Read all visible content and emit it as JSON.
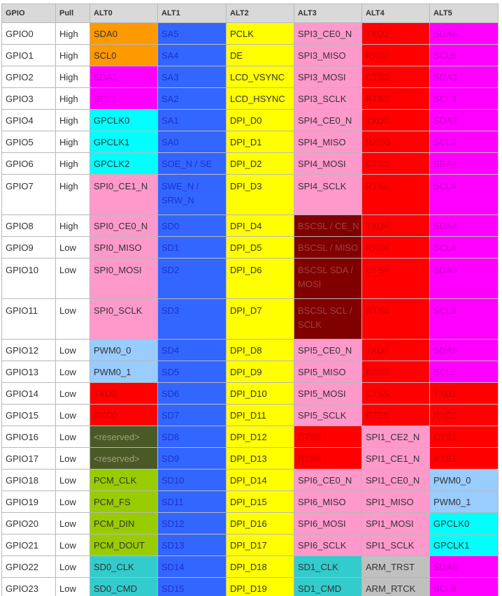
{
  "headers": [
    "GPIO",
    "Pull",
    "ALT0",
    "ALT1",
    "ALT2",
    "ALT3",
    "ALT4",
    "ALT5"
  ],
  "colors": {
    "orange": "#ff9900",
    "blue": "#3366ff",
    "yellow": "#ffff00",
    "pink": "#ff99cc",
    "red": "#ff0000",
    "magenta": "#ff00ff",
    "cyan": "#00ffff",
    "maroon": "#800000",
    "lightblue": "#99ccff",
    "olive": "#4a5a26",
    "green": "#99cc00",
    "teal": "#33cccc",
    "gray": "#c0c0c0",
    "white": "#ffffff"
  },
  "rows": [
    {
      "gpio": "GPIO0",
      "pull": "High",
      "cells": [
        [
          "SDA0",
          "orange"
        ],
        [
          "SA5",
          "blue"
        ],
        [
          "PCLK",
          "yellow"
        ],
        [
          "SPI3_CE0_N",
          "pink"
        ],
        [
          "TXD2",
          "red"
        ],
        [
          "SDA6",
          "magenta"
        ]
      ]
    },
    {
      "gpio": "GPIO1",
      "pull": "High",
      "cells": [
        [
          "SCL0",
          "orange"
        ],
        [
          "SA4",
          "blue"
        ],
        [
          "DE",
          "yellow"
        ],
        [
          "SPI3_MISO",
          "pink"
        ],
        [
          "RXD2",
          "red"
        ],
        [
          "SCL6",
          "magenta"
        ]
      ]
    },
    {
      "gpio": "GPIO2",
      "pull": "High",
      "cells": [
        [
          "SDA1",
          "magenta"
        ],
        [
          "SA3",
          "blue"
        ],
        [
          "LCD_VSYNC",
          "yellow"
        ],
        [
          "SPI3_MOSI",
          "pink"
        ],
        [
          "CTS2",
          "red"
        ],
        [
          "SDA3",
          "magenta"
        ]
      ]
    },
    {
      "gpio": "GPIO3",
      "pull": "High",
      "cells": [
        [
          "SCL1",
          "magenta"
        ],
        [
          "SA2",
          "blue"
        ],
        [
          "LCD_HSYNC",
          "yellow"
        ],
        [
          "SPI3_SCLK",
          "pink"
        ],
        [
          "RTS2",
          "red"
        ],
        [
          "SCL3",
          "magenta"
        ]
      ]
    },
    {
      "gpio": "GPIO4",
      "pull": "High",
      "cells": [
        [
          "GPCLK0",
          "cyan"
        ],
        [
          "SA1",
          "blue"
        ],
        [
          "DPI_D0",
          "yellow"
        ],
        [
          "SPI4_CE0_N",
          "pink"
        ],
        [
          "TXD3",
          "red"
        ],
        [
          "SDA3",
          "magenta"
        ]
      ]
    },
    {
      "gpio": "GPIO5",
      "pull": "High",
      "cells": [
        [
          "GPCLK1",
          "cyan"
        ],
        [
          "SA0",
          "blue"
        ],
        [
          "DPI_D1",
          "yellow"
        ],
        [
          "SPI4_MISO",
          "pink"
        ],
        [
          "RXD3",
          "red"
        ],
        [
          "SCL3",
          "magenta"
        ]
      ]
    },
    {
      "gpio": "GPIO6",
      "pull": "High",
      "cells": [
        [
          "GPCLK2",
          "cyan"
        ],
        [
          "SOE_N / SE",
          "blue"
        ],
        [
          "DPI_D2",
          "yellow"
        ],
        [
          "SPI4_MOSI",
          "pink"
        ],
        [
          "CTS3",
          "red"
        ],
        [
          "SDA4",
          "magenta"
        ]
      ]
    },
    {
      "gpio": "GPIO7",
      "pull": "High",
      "tall": true,
      "cells": [
        [
          "SPI0_CE1_N",
          "pink"
        ],
        [
          "SWE_N / SRW_N",
          "blue"
        ],
        [
          "DPI_D3",
          "yellow"
        ],
        [
          "SPI4_SCLK",
          "pink"
        ],
        [
          "RTS3",
          "red"
        ],
        [
          "SCL4",
          "magenta"
        ]
      ]
    },
    {
      "gpio": "GPIO8",
      "pull": "High",
      "cells": [
        [
          "SPI0_CE0_N",
          "pink"
        ],
        [
          "SD0",
          "blue"
        ],
        [
          "DPI_D4",
          "yellow"
        ],
        [
          "BSCSL / CE_N",
          "maroon"
        ],
        [
          "TXD4",
          "red"
        ],
        [
          "SDA4",
          "magenta"
        ]
      ]
    },
    {
      "gpio": "GPIO9",
      "pull": "Low",
      "cells": [
        [
          "SPI0_MISO",
          "pink"
        ],
        [
          "SD1",
          "blue"
        ],
        [
          "DPI_D5",
          "yellow"
        ],
        [
          "BSCSL / MISO",
          "maroon"
        ],
        [
          "RXD4",
          "red"
        ],
        [
          "SCL4",
          "magenta"
        ]
      ]
    },
    {
      "gpio": "GPIO10",
      "pull": "Low",
      "tall": true,
      "cells": [
        [
          "SPI0_MOSI",
          "pink"
        ],
        [
          "SD2",
          "blue"
        ],
        [
          "DPI_D6",
          "yellow"
        ],
        [
          "BSCSL SDA / MOSI",
          "maroon"
        ],
        [
          "CTS4",
          "red"
        ],
        [
          "SDA5",
          "magenta"
        ]
      ]
    },
    {
      "gpio": "GPIO11",
      "pull": "Low",
      "tall": true,
      "cells": [
        [
          "SPI0_SCLK",
          "pink"
        ],
        [
          "SD3",
          "blue"
        ],
        [
          "DPI_D7",
          "yellow"
        ],
        [
          "BSCSL SCL / SCLK",
          "maroon"
        ],
        [
          "RTS4",
          "red"
        ],
        [
          "SCL5",
          "magenta"
        ]
      ]
    },
    {
      "gpio": "GPIO12",
      "pull": "Low",
      "cells": [
        [
          "PWM0_0",
          "lightblue"
        ],
        [
          "SD4",
          "blue"
        ],
        [
          "DPI_D8",
          "yellow"
        ],
        [
          "SPI5_CE0_N",
          "pink"
        ],
        [
          "TXD5",
          "red"
        ],
        [
          "SDA5",
          "magenta"
        ]
      ]
    },
    {
      "gpio": "GPIO13",
      "pull": "Low",
      "cells": [
        [
          "PWM0_1",
          "lightblue"
        ],
        [
          "SD5",
          "blue"
        ],
        [
          "DPI_D9",
          "yellow"
        ],
        [
          "SPI5_MISO",
          "pink"
        ],
        [
          "RXD5",
          "red"
        ],
        [
          "SCL5",
          "magenta"
        ]
      ]
    },
    {
      "gpio": "GPIO14",
      "pull": "Low",
      "cells": [
        [
          "TXD0",
          "red"
        ],
        [
          "SD6",
          "blue"
        ],
        [
          "DPI_D10",
          "yellow"
        ],
        [
          "SPI5_MOSI",
          "pink"
        ],
        [
          "CTS5",
          "red"
        ],
        [
          "TXD1",
          "red"
        ]
      ]
    },
    {
      "gpio": "GPIO15",
      "pull": "Low",
      "cells": [
        [
          "RXD0",
          "red"
        ],
        [
          "SD7",
          "blue"
        ],
        [
          "DPI_D11",
          "yellow"
        ],
        [
          "SPI5_SCLK",
          "pink"
        ],
        [
          "RTS5",
          "red"
        ],
        [
          "RXD1",
          "red"
        ]
      ]
    },
    {
      "gpio": "GPIO16",
      "pull": "Low",
      "cells": [
        [
          "<reserved>",
          "olive"
        ],
        [
          "SD8",
          "blue"
        ],
        [
          "DPI_D12",
          "yellow"
        ],
        [
          "CTS0",
          "red"
        ],
        [
          "SPI1_CE2_N",
          "pink"
        ],
        [
          "CTS1",
          "red"
        ]
      ]
    },
    {
      "gpio": "GPIO17",
      "pull": "Low",
      "cells": [
        [
          "<reserved>",
          "olive"
        ],
        [
          "SD9",
          "blue"
        ],
        [
          "DPI_D13",
          "yellow"
        ],
        [
          "RTS0",
          "red"
        ],
        [
          "SPI1_CE1_N",
          "pink"
        ],
        [
          "RTS1",
          "red"
        ]
      ]
    },
    {
      "gpio": "GPIO18",
      "pull": "Low",
      "cells": [
        [
          "PCM_CLK",
          "green"
        ],
        [
          "SD10",
          "blue"
        ],
        [
          "DPI_D14",
          "yellow"
        ],
        [
          "SPI6_CE0_N",
          "pink"
        ],
        [
          "SPI1_CE0_N",
          "pink"
        ],
        [
          "PWM0_0",
          "lightblue"
        ]
      ]
    },
    {
      "gpio": "GPIO19",
      "pull": "Low",
      "cells": [
        [
          "PCM_FS",
          "green"
        ],
        [
          "SD11",
          "blue"
        ],
        [
          "DPI_D15",
          "yellow"
        ],
        [
          "SPI6_MISO",
          "pink"
        ],
        [
          "SPI1_MISO",
          "pink"
        ],
        [
          "PWM0_1",
          "lightblue"
        ]
      ]
    },
    {
      "gpio": "GPIO20",
      "pull": "Low",
      "cells": [
        [
          "PCM_DIN",
          "green"
        ],
        [
          "SD12",
          "blue"
        ],
        [
          "DPI_D16",
          "yellow"
        ],
        [
          "SPI6_MOSI",
          "pink"
        ],
        [
          "SPI1_MOSI",
          "pink"
        ],
        [
          "GPCLK0",
          "cyan"
        ]
      ]
    },
    {
      "gpio": "GPIO21",
      "pull": "Low",
      "cells": [
        [
          "PCM_DOUT",
          "green"
        ],
        [
          "SD13",
          "blue"
        ],
        [
          "DPI_D17",
          "yellow"
        ],
        [
          "SPI6_SCLK",
          "pink"
        ],
        [
          "SPI1_SCLK",
          "pink"
        ],
        [
          "GPCLK1",
          "cyan"
        ]
      ]
    },
    {
      "gpio": "GPIO22",
      "pull": "Low",
      "cells": [
        [
          "SD0_CLK",
          "teal"
        ],
        [
          "SD14",
          "blue"
        ],
        [
          "DPI_D18",
          "yellow"
        ],
        [
          "SD1_CLK",
          "teal"
        ],
        [
          "ARM_TRST",
          "gray"
        ],
        [
          "SDA6",
          "magenta"
        ]
      ]
    },
    {
      "gpio": "GPIO23",
      "pull": "Low",
      "cells": [
        [
          "SD0_CMD",
          "teal"
        ],
        [
          "SD15",
          "blue"
        ],
        [
          "DPI_D19",
          "yellow"
        ],
        [
          "SD1_CMD",
          "teal"
        ],
        [
          "ARM_RTCK",
          "gray"
        ],
        [
          "SCL6",
          "magenta"
        ]
      ]
    }
  ],
  "cut_row": {
    "cells": [
      "white",
      "white",
      "teal",
      "blue",
      "yellow",
      "teal",
      "gray",
      "magenta"
    ]
  }
}
